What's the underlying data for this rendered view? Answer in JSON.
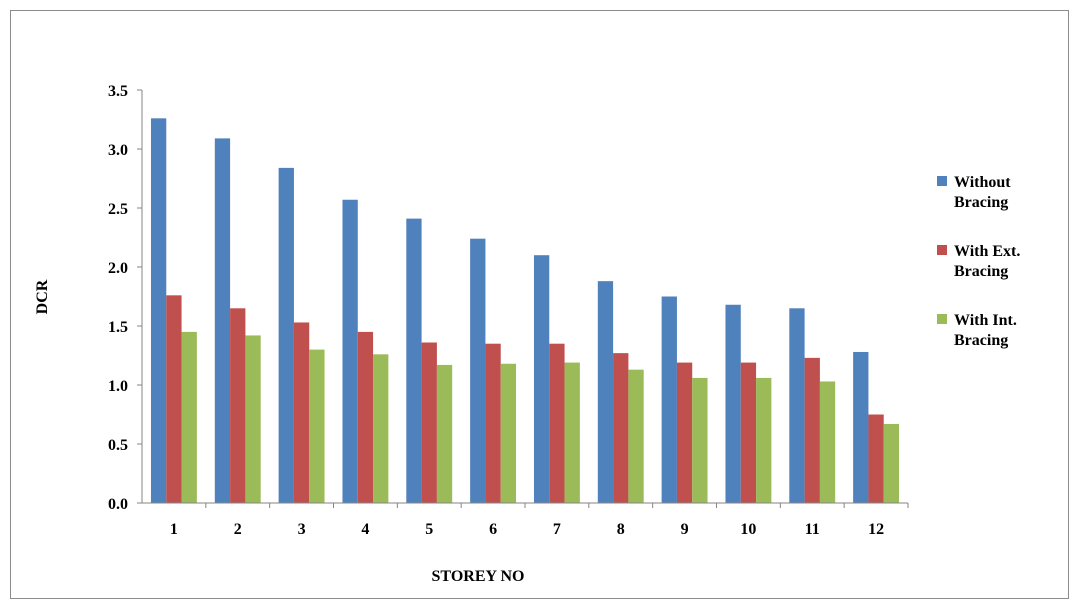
{
  "chart_data": {
    "type": "bar",
    "xlabel": "STOREY NO",
    "ylabel": "DCR",
    "ylim": [
      0,
      3.5
    ],
    "yticks": [
      0.0,
      0.5,
      1.0,
      1.5,
      2.0,
      2.5,
      3.0,
      3.5
    ],
    "categories": [
      "1",
      "2",
      "3",
      "4",
      "5",
      "6",
      "7",
      "8",
      "9",
      "10",
      "11",
      "12"
    ],
    "grid": false,
    "legend_position": "right",
    "series": [
      {
        "name": "Without Bracing",
        "legend_lines": [
          "Without",
          "Bracing"
        ],
        "color": "#4f81bd",
        "values": [
          3.26,
          3.09,
          2.84,
          2.57,
          2.41,
          2.24,
          2.1,
          1.88,
          1.75,
          1.68,
          1.65,
          1.28
        ]
      },
      {
        "name": "With Ext. Bracing",
        "legend_lines": [
          "With Ext.",
          "Bracing"
        ],
        "color": "#c0504d",
        "values": [
          1.76,
          1.65,
          1.53,
          1.45,
          1.36,
          1.35,
          1.35,
          1.27,
          1.19,
          1.19,
          1.23,
          0.75
        ]
      },
      {
        "name": "With Int. Bracing",
        "legend_lines": [
          "With Int.",
          "Bracing"
        ],
        "color": "#9bbb59",
        "values": [
          1.45,
          1.42,
          1.3,
          1.26,
          1.17,
          1.18,
          1.19,
          1.13,
          1.06,
          1.06,
          1.03,
          0.67
        ]
      }
    ]
  }
}
